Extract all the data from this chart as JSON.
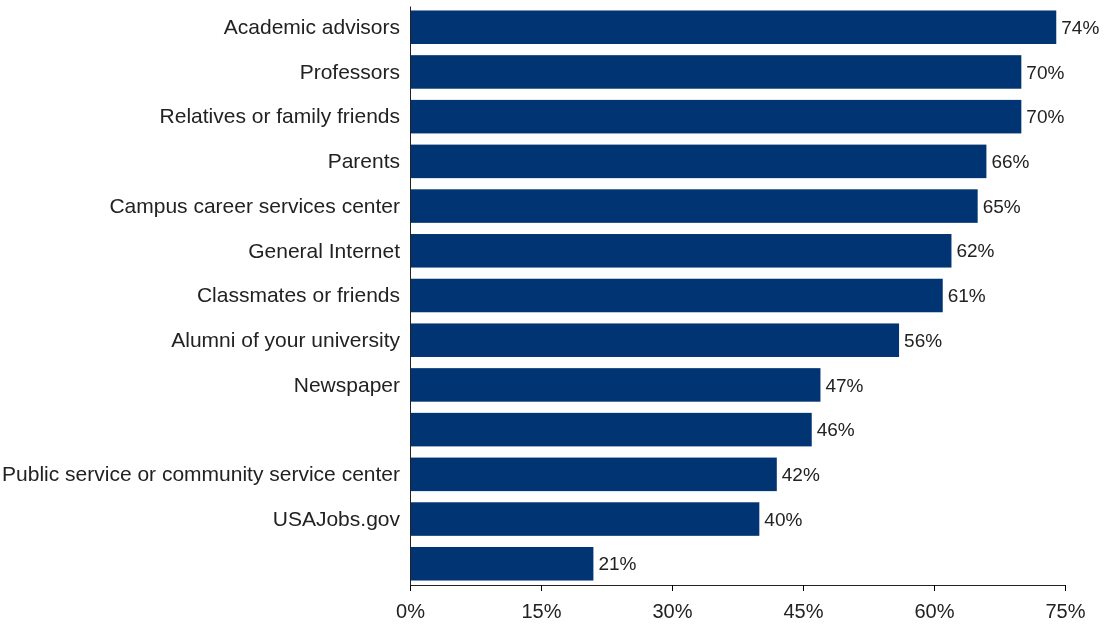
{
  "chart_data": {
    "type": "bar",
    "orientation": "horizontal",
    "categories": [
      "Academic advisors",
      "Professors",
      "Relatives or family friends",
      "Parents",
      "Campus career services center",
      "General Internet",
      "Classmates or friends",
      "Alumni of your university",
      "Newspaper",
      null,
      "Public service or community service center",
      "USAJobs.gov",
      null
    ],
    "values": [
      74,
      70,
      70,
      66,
      65,
      62,
      61,
      56,
      47,
      46,
      42,
      40,
      21
    ],
    "value_labels": [
      "74%",
      "70%",
      "70%",
      "66%",
      "65%",
      "62%",
      "61%",
      "56%",
      "47%",
      "46%",
      "42%",
      "40%",
      "21%"
    ],
    "color": "#003473",
    "xlim": [
      0,
      75
    ],
    "xticks": [
      {
        "value": 0,
        "label": "0%"
      },
      {
        "value": 15,
        "label": "15%"
      },
      {
        "value": 30,
        "label": "30%"
      },
      {
        "value": 45,
        "label": "45%"
      },
      {
        "value": 60,
        "label": "60%"
      },
      {
        "value": 75,
        "label": "75%"
      }
    ],
    "grid": false
  }
}
